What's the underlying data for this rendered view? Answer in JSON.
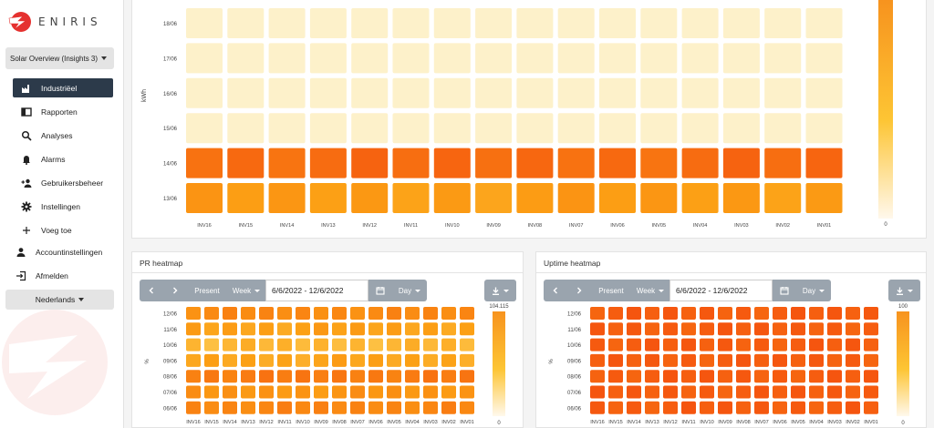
{
  "brand": {
    "name": "ENIRIS",
    "color": "#e5312f"
  },
  "sidebar": {
    "project": "Solar Overview (Insights 3)",
    "items": [
      {
        "label": "Industriëel",
        "icon": "factory-icon",
        "active": true
      },
      {
        "label": "Rapporten",
        "icon": "book-icon"
      },
      {
        "label": "Analyses",
        "icon": "search-icon"
      },
      {
        "label": "Alarms",
        "icon": "bell-icon"
      },
      {
        "label": "Gebruikersbeheer",
        "icon": "add-user-icon"
      },
      {
        "label": "Instellingen",
        "icon": "gear-icon"
      },
      {
        "label": "Voeg toe",
        "icon": "plus-icon"
      }
    ],
    "account": [
      {
        "label": "Accountinstellingen",
        "icon": "person-icon"
      },
      {
        "label": "Afmelden",
        "icon": "logout-icon"
      }
    ],
    "language": "Nederlands"
  },
  "top_heatmap": {
    "unit": "kWh",
    "rows": [
      "18/06",
      "17/06",
      "16/06",
      "15/06",
      "14/06",
      "13/06"
    ],
    "columns": [
      "INV16",
      "INV15",
      "INV14",
      "INV13",
      "INV12",
      "INV11",
      "INV10",
      "INV09",
      "INV08",
      "INV07",
      "INV06",
      "INV05",
      "INV04",
      "INV03",
      "INV02",
      "INV01"
    ],
    "legend_min": "0",
    "row_levels": [
      0.06,
      0.06,
      0.06,
      0.06,
      0.88,
      0.62
    ]
  },
  "pr_panel": {
    "title": "PR heatmap",
    "controls": {
      "present": "Present",
      "period": "Week",
      "date_range": "6/6/2022 - 12/6/2022",
      "granularity": "Day"
    },
    "unit": "%",
    "legend_max": "104.115",
    "legend_min": "0",
    "rows": [
      "12/06",
      "11/06",
      "10/06",
      "09/06",
      "08/06",
      "07/06",
      "06/06"
    ],
    "columns": [
      "INV16",
      "INV15",
      "INV14",
      "INV13",
      "INV12",
      "INV11",
      "INV10",
      "INV09",
      "INV08",
      "INV07",
      "INV06",
      "INV05",
      "INV04",
      "INV03",
      "INV02",
      "INV01"
    ],
    "row_levels": [
      0.72,
      0.6,
      0.5,
      0.58,
      0.8,
      0.66,
      0.74
    ]
  },
  "uptime_panel": {
    "title": "Uptime heatmap",
    "controls": {
      "present": "Present",
      "period": "Week",
      "date_range": "6/6/2022 - 12/6/2022",
      "granularity": "Day"
    },
    "unit": "%",
    "legend_max": "100",
    "legend_min": "0",
    "rows": [
      "12/06",
      "11/06",
      "10/06",
      "09/06",
      "08/06",
      "07/06",
      "06/06"
    ],
    "columns": [
      "INV16",
      "INV15",
      "INV14",
      "INV13",
      "INV12",
      "INV11",
      "INV10",
      "INV09",
      "INV08",
      "INV07",
      "INV06",
      "INV05",
      "INV04",
      "INV03",
      "INV02",
      "INV01"
    ],
    "row_levels": [
      0.96,
      0.96,
      0.96,
      0.96,
      0.96,
      0.96,
      0.96
    ]
  }
}
